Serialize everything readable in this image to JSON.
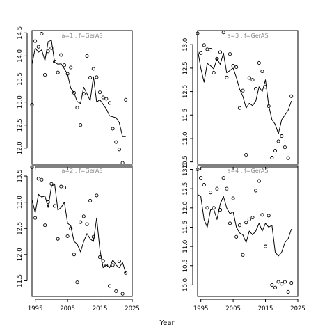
{
  "figure": {
    "xlabel": "Year"
  },
  "chart_data": [
    {
      "type": "line",
      "title": "a=1 : f=GerAS",
      "xlim": [
        1994,
        2025
      ],
      "ylim": [
        11.65,
        14.55
      ],
      "xticks": [
        1995,
        2005,
        2015,
        2025
      ],
      "yticks": [
        12.0,
        12.5,
        13.0,
        13.5,
        14.0,
        14.5
      ],
      "show_xtick_labels": false,
      "series": [
        {
          "type": "line",
          "x": [
            1994,
            1995,
            1996,
            1997,
            1998,
            1999,
            2000,
            2001,
            2002,
            2003,
            2004,
            2005,
            2006,
            2007,
            2008,
            2009,
            2010,
            2011,
            2012,
            2013,
            2014,
            2015,
            2016,
            2017,
            2018,
            2019,
            2020,
            2021,
            2022,
            2023
          ],
          "y": [
            13.82,
            14.17,
            14.08,
            14.13,
            13.9,
            14.31,
            14.34,
            13.86,
            13.82,
            13.83,
            13.72,
            13.6,
            13.3,
            13.2,
            13.01,
            12.97,
            13.32,
            13.18,
            13.03,
            13.55,
            13.0,
            13.05,
            12.95,
            12.85,
            12.7,
            12.68,
            12.66,
            12.55,
            12.25,
            12.25
          ]
        },
        {
          "type": "scatter",
          "x": [
            1994,
            1995,
            1996,
            1997,
            1998,
            1999,
            2000,
            2001,
            2002,
            2003,
            2004,
            2005,
            2006,
            2007,
            2008,
            2009,
            2010,
            2011,
            2012,
            2013,
            2014,
            2015,
            2016,
            2017,
            2018,
            2019,
            2020,
            2021,
            2022,
            2023
          ],
          "y": [
            12.94,
            14.32,
            14.2,
            14.48,
            13.59,
            14.1,
            14.17,
            13.88,
            13.64,
            14.02,
            13.8,
            13.61,
            13.75,
            13.2,
            12.88,
            12.5,
            13.18,
            14.0,
            13.53,
            13.72,
            13.54,
            13.21,
            13.1,
            13.07,
            12.98,
            12.42,
            12.13,
            11.97,
            11.68,
            13.05
          ]
        }
      ]
    },
    {
      "type": "line",
      "title": "a=3 : f=GerAS",
      "xlim": [
        1994,
        2025
      ],
      "ylim": [
        10.45,
        13.3
      ],
      "xticks": [
        1995,
        2005,
        2015,
        2025
      ],
      "yticks": [
        10.5,
        11.0,
        11.5,
        12.0,
        12.5,
        13.0
      ],
      "show_xtick_labels": false,
      "series": [
        {
          "type": "line",
          "x": [
            1994,
            1995,
            1996,
            1997,
            1998,
            1999,
            2000,
            2001,
            2002,
            2003,
            2004,
            2005,
            2006,
            2007,
            2008,
            2009,
            2010,
            2011,
            2012,
            2013,
            2014,
            2015,
            2016,
            2017,
            2018,
            2019,
            2020,
            2021,
            2022,
            2023
          ],
          "y": [
            12.9,
            12.5,
            12.2,
            12.6,
            12.55,
            12.48,
            12.7,
            12.58,
            12.82,
            12.4,
            12.45,
            12.5,
            12.3,
            12.05,
            11.9,
            11.65,
            11.75,
            11.7,
            11.8,
            12.1,
            12.0,
            12.25,
            11.7,
            11.4,
            11.3,
            11.1,
            11.4,
            11.5,
            11.6,
            11.8
          ]
        },
        {
          "type": "scatter",
          "x": [
            1994,
            1995,
            1996,
            1997,
            1998,
            1999,
            2000,
            2001,
            2002,
            2003,
            2004,
            2005,
            2006,
            2007,
            2008,
            2009,
            2010,
            2011,
            2012,
            2013,
            2014,
            2015,
            2016,
            2017,
            2018,
            2019,
            2020,
            2021,
            2022,
            2023
          ],
          "y": [
            13.24,
            12.82,
            12.99,
            12.9,
            12.89,
            12.4,
            12.7,
            12.84,
            13.26,
            12.3,
            12.8,
            12.55,
            12.52,
            11.65,
            12.02,
            10.65,
            12.29,
            12.25,
            12.06,
            12.61,
            12.43,
            12.1,
            11.69,
            10.59,
            10.74,
            10.94,
            11.05,
            10.81,
            10.58,
            11.9
          ]
        }
      ]
    },
    {
      "type": "line",
      "title": "a=2 : f=GerAS",
      "xlim": [
        1994,
        2025
      ],
      "ylim": [
        11.2,
        13.7
      ],
      "xticks": [
        1995,
        2005,
        2015,
        2025
      ],
      "yticks": [
        11.5,
        12.0,
        12.5,
        13.0,
        13.5
      ],
      "show_xtick_labels": true,
      "series": [
        {
          "type": "line",
          "x": [
            1994,
            1995,
            1996,
            1997,
            1998,
            1999,
            2000,
            2001,
            2002,
            2003,
            2004,
            2005,
            2006,
            2007,
            2008,
            2009,
            2010,
            2011,
            2012,
            2013,
            2014,
            2015,
            2016,
            2017,
            2018,
            2019,
            2020,
            2021,
            2022,
            2023
          ],
          "y": [
            13.05,
            12.8,
            13.15,
            13.1,
            13.12,
            12.9,
            13.3,
            13.35,
            12.85,
            12.9,
            13.0,
            12.6,
            12.55,
            12.25,
            12.2,
            12.05,
            12.25,
            12.4,
            12.3,
            12.25,
            12.7,
            12.1,
            11.75,
            11.8,
            11.75,
            11.9,
            11.8,
            11.75,
            11.85,
            11.65
          ]
        },
        {
          "type": "scatter",
          "x": [
            1994,
            1995,
            1996,
            1997,
            1998,
            1999,
            2000,
            2001,
            2002,
            2003,
            2004,
            2005,
            2006,
            2007,
            2008,
            2009,
            2010,
            2011,
            2012,
            2013,
            2014,
            2015,
            2016,
            2017,
            2018,
            2019,
            2020,
            2021,
            2022,
            2023
          ],
          "y": [
            13.67,
            12.7,
            13.45,
            13.43,
            12.56,
            13.0,
            13.35,
            12.93,
            12.3,
            13.3,
            13.28,
            12.35,
            12.5,
            12.0,
            11.47,
            12.62,
            12.73,
            12.58,
            13.03,
            12.34,
            13.13,
            11.95,
            11.88,
            11.79,
            11.4,
            11.8,
            11.3,
            11.87,
            11.25,
            11.65
          ]
        }
      ]
    },
    {
      "type": "line",
      "title": "a=4 : f=GerAS",
      "xlim": [
        1994,
        2025
      ],
      "ylim": [
        9.7,
        13.1
      ],
      "xticks": [
        1995,
        2005,
        2015,
        2025
      ],
      "yticks": [
        10.0,
        10.5,
        11.0,
        11.5,
        12.0,
        12.5,
        13.0
      ],
      "show_xtick_labels": true,
      "series": [
        {
          "type": "line",
          "x": [
            1994,
            1995,
            1996,
            1997,
            1998,
            1999,
            2000,
            2001,
            2002,
            2003,
            2004,
            2005,
            2006,
            2007,
            2008,
            2009,
            2010,
            2011,
            2012,
            2013,
            2014,
            2015,
            2016,
            2017,
            2018,
            2019,
            2020,
            2021,
            2022,
            2023
          ],
          "y": [
            12.35,
            12.3,
            11.7,
            11.5,
            11.95,
            11.97,
            11.7,
            12.1,
            12.3,
            12.0,
            11.85,
            11.9,
            11.5,
            11.35,
            11.3,
            11.1,
            11.4,
            11.3,
            11.4,
            11.6,
            11.4,
            11.6,
            11.5,
            11.55,
            10.85,
            10.75,
            10.85,
            11.1,
            11.2,
            11.45
          ]
        },
        {
          "type": "scatter",
          "x": [
            1994,
            1995,
            1996,
            1997,
            1998,
            1999,
            2000,
            2001,
            2002,
            2003,
            2004,
            2005,
            2006,
            2007,
            2008,
            2009,
            2010,
            2011,
            2012,
            2013,
            2014,
            2015,
            2016,
            2017,
            2018,
            2019,
            2020,
            2021,
            2022,
            2023
          ],
          "y": [
            13.0,
            12.78,
            12.6,
            12.0,
            12.4,
            12.0,
            12.5,
            11.95,
            12.78,
            12.5,
            11.6,
            12.25,
            11.25,
            11.55,
            10.78,
            11.62,
            11.7,
            11.75,
            12.45,
            12.7,
            11.82,
            11.0,
            11.8,
            10.0,
            9.93,
            10.08,
            10.03,
            10.08,
            9.82,
            10.05
          ]
        }
      ]
    }
  ]
}
